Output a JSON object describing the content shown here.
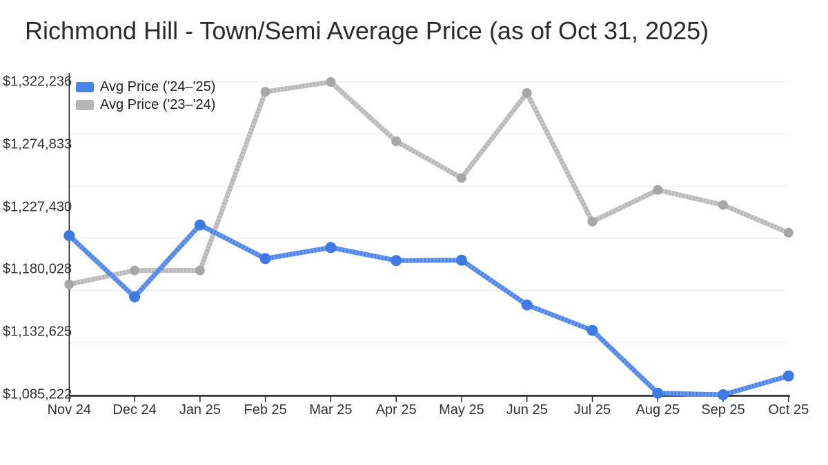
{
  "title": "Richmond Hill - Town/Semi Average Price (as of Oct 31, 2025)",
  "colors": {
    "background": "#ffffff",
    "grid": "#e9e9e9",
    "axis": "#161616",
    "tick_text": "#323232",
    "title_text": "#2b2b2b"
  },
  "chart_data": {
    "type": "line",
    "title": "Richmond Hill - Town/Semi Average Price (as of Oct 31, 2025)",
    "xlabel": "",
    "ylabel": "",
    "grid": true,
    "legend_position": "top-left",
    "categories": [
      "Nov 24",
      "Dec 24",
      "Jan 25",
      "Feb 25",
      "Mar 25",
      "Apr 25",
      "May 25",
      "Jun 25",
      "Jul 25",
      "Aug 25",
      "Sep 25",
      "Oct 25"
    ],
    "y_min": 1085222,
    "y_max": 1322236,
    "y_tick_labels": [
      "$1,322,236",
      "$1,274,833",
      "$1,227,430",
      "$1,180,028",
      "$1,132,625",
      "$1,085,222"
    ],
    "y_tick_values": [
      1322236,
      1274833,
      1227430,
      1180028,
      1132625,
      1085222
    ],
    "series": [
      {
        "name": "Avg Price ('24–'25)",
        "color": "#4a84e8",
        "stripe_color": "#79a1f0",
        "marker_color": "#3d7ae6",
        "marker_radius": 8,
        "values": [
          1205800,
          1159400,
          1213900,
          1188400,
          1196800,
          1186900,
          1187200,
          1153300,
          1134000,
          1086400,
          1085222,
          1099500
        ]
      },
      {
        "name": "Avg Price ('23–'24)",
        "color": "#b7b7b7",
        "stripe_color": "#cccccc",
        "marker_color": "#a6a6a6",
        "marker_radius": 7,
        "values": [
          1168900,
          1179400,
          1179400,
          1314800,
          1322236,
          1277300,
          1249500,
          1313900,
          1216400,
          1240400,
          1229000,
          1208000
        ]
      }
    ]
  }
}
